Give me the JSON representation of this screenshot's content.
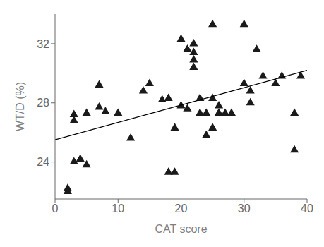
{
  "chart_data": {
    "type": "scatter",
    "xlabel": "CAT score",
    "ylabel": "WT/D (%)",
    "xlim": [
      0,
      40
    ],
    "ylim": [
      21.5,
      34.0
    ],
    "xticks": [
      0,
      10,
      20,
      30,
      40
    ],
    "yticks": [
      24,
      28,
      32
    ],
    "grid": false,
    "series": [
      {
        "type": "scatter",
        "color": "#1a1a1a",
        "marker": "triangle",
        "x": [
          2,
          3,
          3,
          4,
          5,
          7,
          7,
          8,
          10,
          12,
          15,
          17,
          18,
          19,
          20,
          20,
          21,
          21,
          22,
          22,
          22,
          23,
          23,
          24,
          24,
          25,
          25,
          26,
          26,
          27,
          28,
          30,
          30,
          31,
          31,
          32,
          33,
          35,
          36,
          38,
          38,
          39,
          2,
          3,
          5,
          14,
          18,
          19,
          21,
          22,
          25,
          26
        ],
        "values": [
          22.2,
          27.2,
          26.8,
          24.2,
          27.3,
          29.2,
          27.7,
          27.4,
          27.3,
          25.6,
          29.3,
          28.2,
          28.3,
          26.3,
          27.8,
          32.3,
          27.6,
          31.6,
          31.4,
          30.4,
          30.9,
          28.3,
          27.3,
          27.3,
          25.8,
          28.3,
          26.3,
          27.8,
          27.3,
          27.3,
          27.3,
          29.3,
          33.3,
          28.8,
          28.0,
          31.6,
          29.8,
          29.3,
          29.8,
          27.3,
          24.8,
          29.8,
          22.0,
          24.0,
          23.8,
          28.8,
          23.3,
          23.3,
          31.6,
          32.0,
          33.3,
          27.3
        ]
      },
      {
        "type": "line",
        "color": "#000000",
        "x": [
          0,
          40
        ],
        "values": [
          25.5,
          30.2
        ]
      }
    ]
  }
}
